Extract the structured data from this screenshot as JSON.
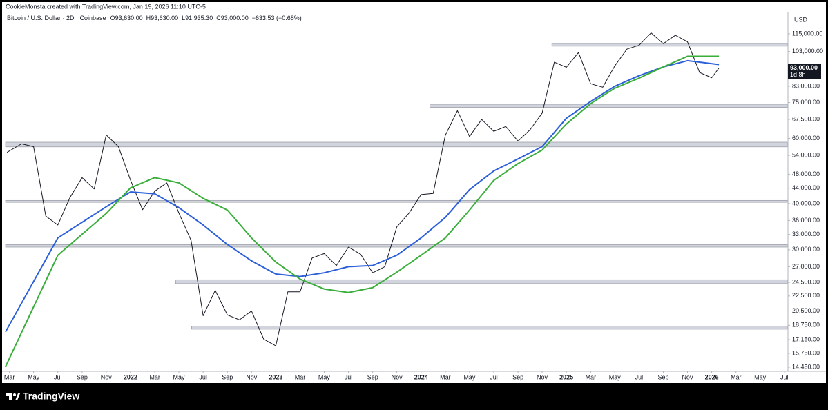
{
  "chart_data": {
    "type": "line",
    "header": "CookieMonsta created with TradingView.com, Jan 19, 2026 11:10 UTC-5",
    "title": "Bitcoin / U.S. Dollar · 2D · Coinbase",
    "ohlc": [
      "O93,630.00",
      "H93,630.00",
      "L91,935.30",
      "C93,000.00",
      "−633.53 (−0.68%)"
    ],
    "currency": "USD",
    "brand": "TradingView",
    "log_scale": true,
    "grid": false,
    "xlim": [
      2021.14,
      2026.52
    ],
    "ylim": [
      14080,
      130250
    ],
    "xticks": [
      {
        "value": 2021.167,
        "label": "Mar"
      },
      {
        "value": 2021.333,
        "label": "May"
      },
      {
        "value": 2021.5,
        "label": "Jul"
      },
      {
        "value": 2021.667,
        "label": "Sep"
      },
      {
        "value": 2021.833,
        "label": "Nov"
      },
      2022,
      {
        "value": 2022.167,
        "label": "Mar"
      },
      {
        "value": 2022.333,
        "label": "May"
      },
      {
        "value": 2022.5,
        "label": "Jul"
      },
      {
        "value": 2022.667,
        "label": "Sep"
      },
      {
        "value": 2022.833,
        "label": "Nov"
      },
      2023,
      {
        "value": 2023.167,
        "label": "Mar"
      },
      {
        "value": 2023.333,
        "label": "May"
      },
      {
        "value": 2023.5,
        "label": "Jul"
      },
      {
        "value": 2023.667,
        "label": "Sep"
      },
      {
        "value": 2023.833,
        "label": "Nov"
      },
      2024,
      {
        "value": 2024.167,
        "label": "Mar"
      },
      {
        "value": 2024.333,
        "label": "May"
      },
      {
        "value": 2024.5,
        "label": "Jul"
      },
      {
        "value": 2024.667,
        "label": "Sep"
      },
      {
        "value": 2024.833,
        "label": "Nov"
      },
      2025,
      {
        "value": 2025.167,
        "label": "Mar"
      },
      {
        "value": 2025.333,
        "label": "May"
      },
      {
        "value": 2025.5,
        "label": "Jul"
      },
      {
        "value": 2025.667,
        "label": "Sep"
      },
      {
        "value": 2025.833,
        "label": "Nov"
      },
      2026,
      {
        "value": 2026.167,
        "label": "Mar"
      },
      {
        "value": 2026.333,
        "label": "May"
      },
      {
        "value": 2026.5,
        "label": "Jul"
      }
    ],
    "yticks": [
      {
        "value": 115000,
        "label": "115,000.00"
      },
      {
        "value": 103000,
        "label": "103,000.00"
      },
      {
        "value": 83000,
        "label": "83,000.00"
      },
      {
        "value": 75000,
        "label": "75,000.00"
      },
      {
        "value": 67500,
        "label": "67,500.00"
      },
      {
        "value": 60000,
        "label": "60,000.00"
      },
      {
        "value": 54000,
        "label": "54,000.00"
      },
      {
        "value": 48000,
        "label": "48,000.00"
      },
      {
        "value": 44000,
        "label": "44,000.00"
      },
      {
        "value": 40000,
        "label": "40,000.00"
      },
      {
        "value": 36000,
        "label": "36,000.00"
      },
      {
        "value": 33000,
        "label": "33,000.00"
      },
      {
        "value": 30000,
        "label": "30,000.00"
      },
      {
        "value": 27000,
        "label": "27,000.00"
      },
      {
        "value": 24500,
        "label": "24,500.00"
      },
      {
        "value": 22500,
        "label": "22,500.00"
      },
      {
        "value": 20500,
        "label": "20,500.00"
      },
      {
        "value": 18750,
        "label": "18,750.00"
      },
      {
        "value": 17150,
        "label": "17,150.00"
      },
      {
        "value": 15750,
        "label": "15,750.00"
      },
      {
        "value": 14450,
        "label": "14,450.00"
      }
    ],
    "current_price": {
      "value": 93000,
      "label": "93,000.00"
    },
    "countdown": "1d 8h",
    "zones": [
      {
        "x0": 2024.9,
        "y0": 106500,
        "y1": 108300
      },
      {
        "x0": 2024.06,
        "y0": 72700,
        "y1": 74200
      },
      {
        "x0": 2021.14,
        "y0": 56900,
        "y1": 58600
      },
      {
        "x0": 2021.14,
        "y0": 40300,
        "y1": 40800
      },
      {
        "x0": 2021.14,
        "y0": 30500,
        "y1": 31000
      },
      {
        "x0": 2022.31,
        "y0": 24300,
        "y1": 24900
      },
      {
        "x0": 2022.42,
        "y0": 18300,
        "y1": 18640
      }
    ],
    "series": [
      {
        "color": "#131722",
        "x": [
          2021.15,
          2021.25,
          2021.333,
          2021.417,
          2021.5,
          2021.583,
          2021.667,
          2021.75,
          2021.833,
          2021.917,
          2022.0,
          2022.083,
          2022.167,
          2022.25,
          2022.333,
          2022.417,
          2022.5,
          2022.583,
          2022.667,
          2022.75,
          2022.833,
          2022.917,
          2023.0,
          2023.083,
          2023.167,
          2023.25,
          2023.333,
          2023.417,
          2023.5,
          2023.583,
          2023.667,
          2023.75,
          2023.833,
          2023.917,
          2024.0,
          2024.083,
          2024.167,
          2024.25,
          2024.333,
          2024.417,
          2024.5,
          2024.583,
          2024.667,
          2024.75,
          2024.833,
          2024.917,
          2025.0,
          2025.083,
          2025.167,
          2025.25,
          2025.333,
          2025.417,
          2025.5,
          2025.583,
          2025.667,
          2025.75,
          2025.833,
          2025.917,
          2026.0,
          2026.05
        ],
        "values": [
          55000,
          58000,
          57000,
          37000,
          35000,
          41500,
          47000,
          43800,
          61300,
          57000,
          46300,
          38500,
          43200,
          45500,
          37700,
          31800,
          19900,
          23300,
          20000,
          19400,
          20500,
          17200,
          16500,
          23100,
          23100,
          28500,
          29300,
          27200,
          30500,
          29200,
          26000,
          27000,
          34600,
          37700,
          42300,
          42600,
          61200,
          71300,
          60700,
          67500,
          62700,
          64600,
          59000,
          63300,
          70200,
          96400,
          93400,
          102400,
          84300,
          82500,
          94200,
          104600,
          107100,
          115700,
          108200,
          114000,
          109500,
          90400,
          87500,
          93000
        ]
      },
      {
        "color": "#2b5fd9",
        "x": [
          2021.14,
          2021.5,
          2021.833,
          2022.0,
          2022.167,
          2022.333,
          2022.5,
          2022.667,
          2022.833,
          2023.0,
          2023.167,
          2023.333,
          2023.5,
          2023.667,
          2023.833,
          2024.0,
          2024.167,
          2024.333,
          2024.5,
          2024.667,
          2024.833,
          2025.0,
          2025.167,
          2025.333,
          2025.5,
          2025.667,
          2025.833,
          2026.05
        ],
        "values": [
          18000,
          32300,
          39200,
          43000,
          42500,
          39000,
          35000,
          31000,
          28000,
          25800,
          25400,
          26000,
          27000,
          27200,
          29000,
          32300,
          36700,
          43600,
          49000,
          52800,
          57000,
          68000,
          75500,
          83000,
          88600,
          93600,
          97300,
          95000
        ]
      },
      {
        "color": "#3aae3a",
        "x": [
          2021.14,
          2021.5,
          2021.833,
          2022.0,
          2022.167,
          2022.333,
          2022.5,
          2022.667,
          2022.833,
          2023.0,
          2023.167,
          2023.333,
          2023.5,
          2023.667,
          2023.833,
          2024.0,
          2024.167,
          2024.333,
          2024.5,
          2024.667,
          2024.833,
          2025.0,
          2025.167,
          2025.333,
          2025.5,
          2025.667,
          2025.833,
          2026.05
        ],
        "values": [
          14500,
          29000,
          37600,
          44100,
          47000,
          45500,
          41300,
          38400,
          32300,
          27800,
          25000,
          23500,
          23000,
          23700,
          26100,
          29000,
          32300,
          38400,
          46200,
          51300,
          55800,
          65600,
          74500,
          82000,
          87300,
          93600,
          100000,
          100000
        ]
      }
    ]
  }
}
